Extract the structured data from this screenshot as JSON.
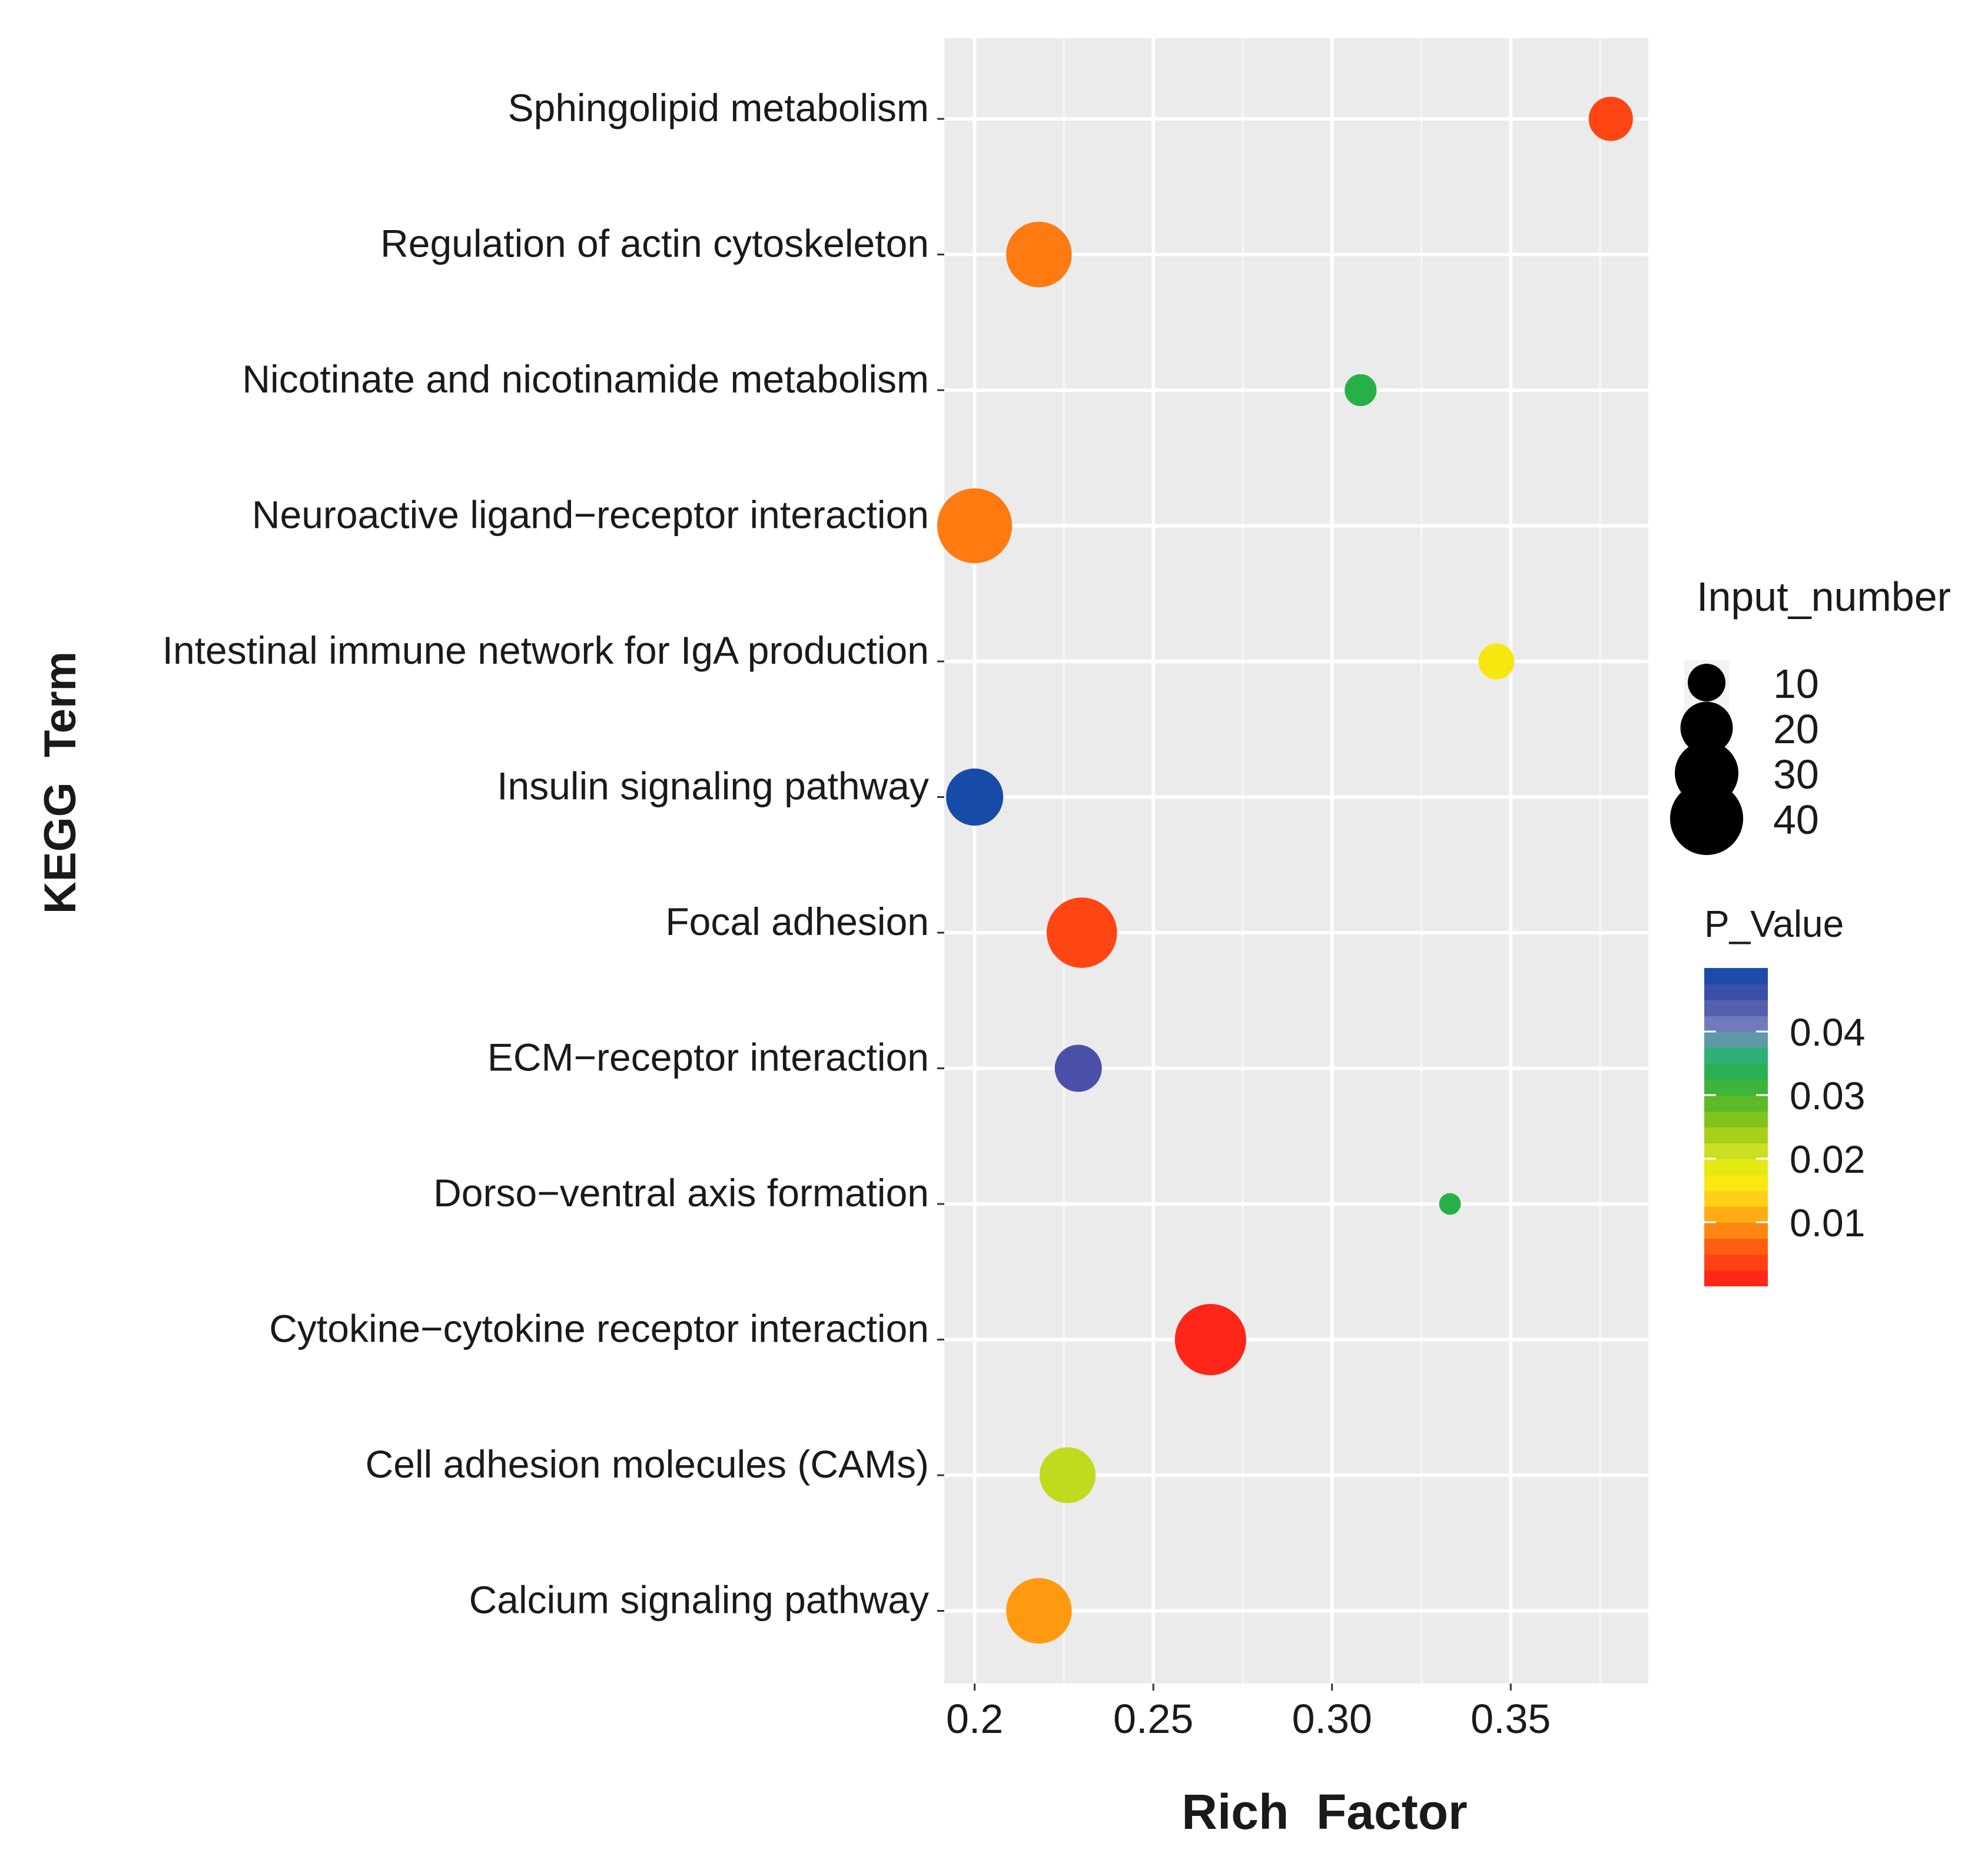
{
  "chart_data": {
    "type": "scatter",
    "title": "",
    "xlabel": "Rich  Factor",
    "ylabel": "KEGG  Term",
    "xlim": [
      0.1915,
      0.3885
    ],
    "xticks": [
      {
        "value": 0.2,
        "label": "0.2"
      },
      {
        "value": 0.25,
        "label": "0.25"
      },
      {
        "value": 0.3,
        "label": "0.30"
      },
      {
        "value": 0.35,
        "label": "0.35"
      }
    ],
    "grid": true,
    "categories": [
      "Sphingolipid metabolism",
      "Regulation of actin cytoskeleton",
      "Nicotinate and nicotinamide metabolism",
      "Neuroactive ligand−receptor interaction",
      "Intestinal immune network for IgA production",
      "Insulin signaling pathway",
      "Focal adhesion",
      "ECM−receptor interaction",
      "Dorso−ventral axis formation",
      "Cytokine−cytokine receptor interaction",
      "Cell adhesion molecules (CAMs)",
      "Calcium signaling pathway"
    ],
    "points": [
      {
        "term": "Sphingolipid metabolism",
        "rich_factor": 0.378,
        "input_number": 14,
        "p_value": 0.004
      },
      {
        "term": "Regulation of actin cytoskeleton",
        "rich_factor": 0.218,
        "input_number": 32,
        "p_value": 0.008
      },
      {
        "term": "Nicotinate and nicotinamide metabolism",
        "rich_factor": 0.308,
        "input_number": 7,
        "p_value": 0.033
      },
      {
        "term": "Neuroactive ligand−receptor interaction",
        "rich_factor": 0.2,
        "input_number": 42,
        "p_value": 0.008
      },
      {
        "term": "Intestinal immune network for IgA production",
        "rich_factor": 0.346,
        "input_number": 9,
        "p_value": 0.016
      },
      {
        "term": "Insulin signaling pathway",
        "rich_factor": 0.2,
        "input_number": 24,
        "p_value": 0.049
      },
      {
        "term": "Focal adhesion",
        "rich_factor": 0.23,
        "input_number": 37,
        "p_value": 0.004
      },
      {
        "term": "ECM−receptor interaction",
        "rich_factor": 0.229,
        "input_number": 16,
        "p_value": 0.045
      },
      {
        "term": "Dorso−ventral axis formation",
        "rich_factor": 0.333,
        "input_number": 3,
        "p_value": 0.033
      },
      {
        "term": "Cytokine−cytokine receptor interaction",
        "rich_factor": 0.266,
        "input_number": 38,
        "p_value": 0.001
      },
      {
        "term": "Cell adhesion molecules (CAMs)",
        "rich_factor": 0.226,
        "input_number": 23,
        "p_value": 0.022
      },
      {
        "term": "Calcium signaling pathway",
        "rich_factor": 0.218,
        "input_number": 32,
        "p_value": 0.01
      }
    ],
    "size_legend": {
      "title": "Input_number",
      "values": [
        10,
        20,
        30,
        40
      ],
      "labels": [
        "10",
        "20",
        "30",
        "40"
      ]
    },
    "color_legend": {
      "title": "P_Value",
      "range": [
        0.0,
        0.05
      ],
      "ticks": [
        {
          "value": 0.04,
          "label": "0.04"
        },
        {
          "value": 0.03,
          "label": "0.03"
        },
        {
          "value": 0.02,
          "label": "0.02"
        },
        {
          "value": 0.01,
          "label": "0.01"
        }
      ],
      "colors": [
        {
          "stop": 0.0,
          "color": "#ff1a1a"
        },
        {
          "stop": 0.006,
          "color": "#ff5a10"
        },
        {
          "stop": 0.01,
          "color": "#ff9a10"
        },
        {
          "stop": 0.014,
          "color": "#ffd21a"
        },
        {
          "stop": 0.017,
          "color": "#f5f00a"
        },
        {
          "stop": 0.021,
          "color": "#cfe020"
        },
        {
          "stop": 0.025,
          "color": "#95c818"
        },
        {
          "stop": 0.029,
          "color": "#58b828"
        },
        {
          "stop": 0.033,
          "color": "#28b048"
        },
        {
          "stop": 0.037,
          "color": "#30b080"
        },
        {
          "stop": 0.04,
          "color": "#7b8ac0"
        },
        {
          "stop": 0.045,
          "color": "#4a50a8"
        },
        {
          "stop": 0.05,
          "color": "#0a4aa8"
        }
      ]
    }
  }
}
